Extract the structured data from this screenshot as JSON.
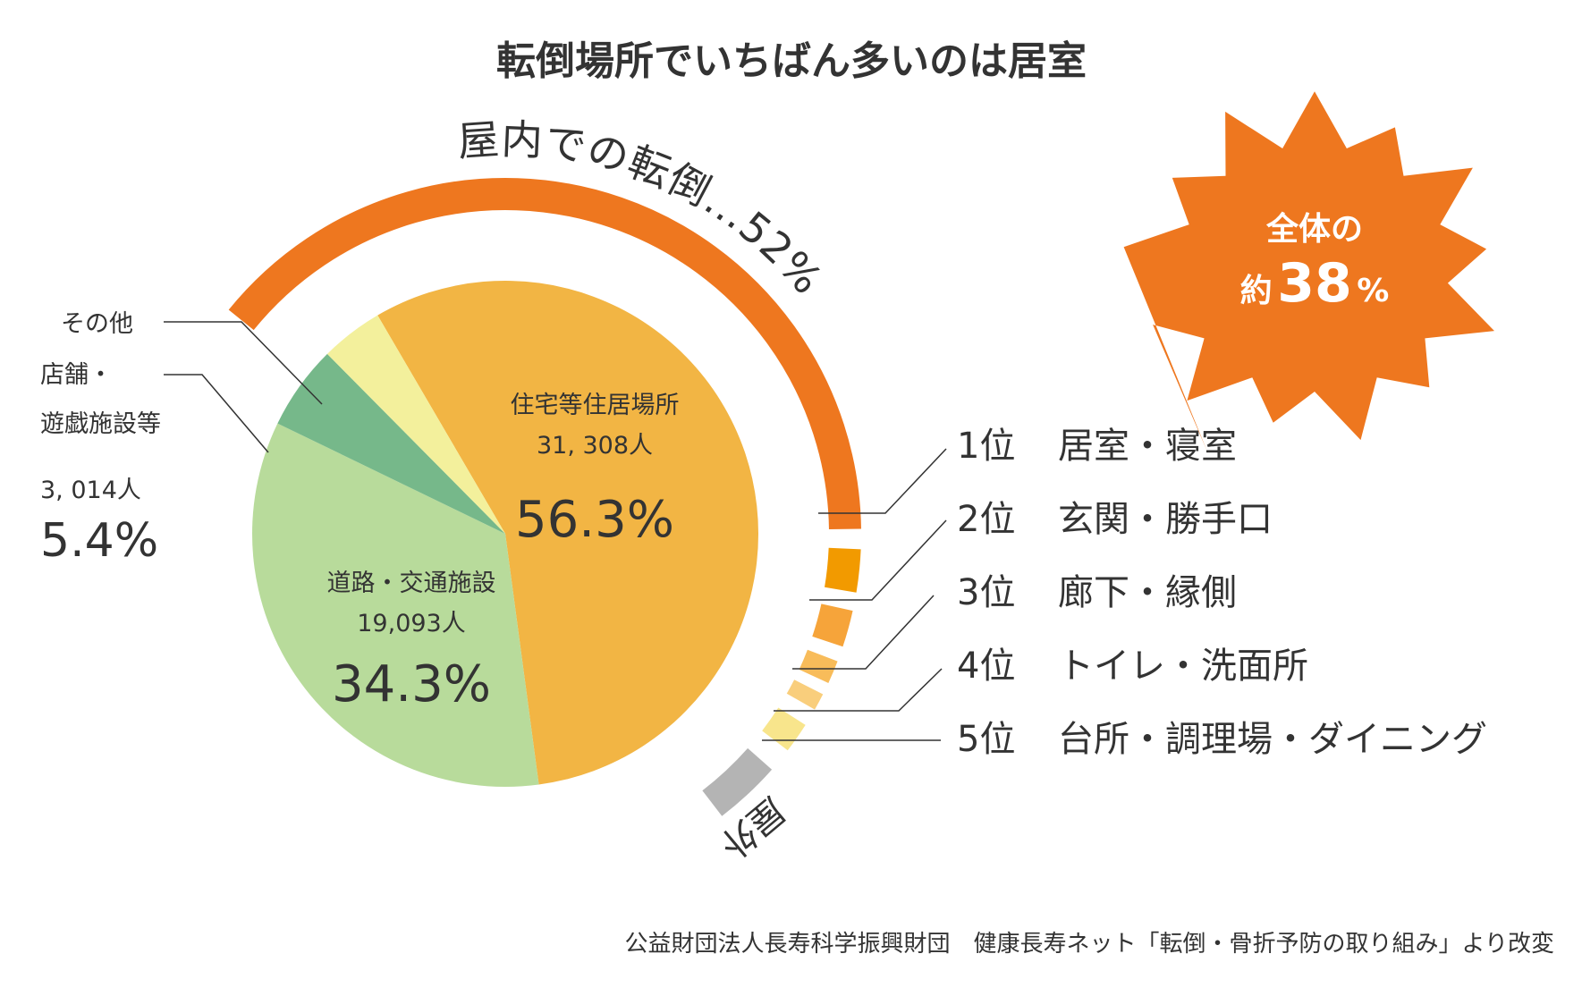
{
  "title": "転倒場所でいちばん多いのは居室",
  "source": "公益財団法人長寿科学振興財団　健康長寿ネット「転倒・骨折予防の取り組み」より改変",
  "chart_data": {
    "type": "pie",
    "slices": [
      {
        "name": "住宅等住居場所",
        "count": "31, 308人",
        "percent": "56.3%",
        "value": 56.3,
        "color": "#F2B544"
      },
      {
        "name": "道路・交通施設",
        "count": "19,093人",
        "percent": "34.3%",
        "value": 34.3,
        "color": "#B8DB9B"
      },
      {
        "name": "店舗・遊戯施設等",
        "count": "",
        "percent": "",
        "value": 5.4,
        "color": "#76B88A"
      },
      {
        "name": "その他",
        "count": "",
        "percent": "",
        "value": 4.0,
        "color": "#F3F09C"
      }
    ],
    "outside_label": {
      "other": "その他",
      "store_line1": "店舗・",
      "store_line2": "遊戯施設等",
      "count": "3, 014人",
      "percent": "5.4%"
    },
    "indoor_arc": {
      "label": "屋内での転倒…52%",
      "percent": 52,
      "color": "#EE771F"
    },
    "outdoor_arc": {
      "label": "屋外",
      "color": "#B4B4B4"
    },
    "ranking": [
      {
        "rank": "1位",
        "place": "居室・寝室",
        "color": "#EE771F"
      },
      {
        "rank": "2位",
        "place": "玄関・勝手口",
        "color": "#F29A00"
      },
      {
        "rank": "3位",
        "place": "廊下・縁側",
        "color": "#F6A43A"
      },
      {
        "rank": "4位",
        "place": "トイレ・洗面所",
        "color": "#F8BC5A"
      },
      {
        "rank": "5位",
        "place": "台所・調理場・ダイニング",
        "color": "#F9CE7C"
      }
    ],
    "extra_arc_color": "#F8E58C",
    "callout": {
      "line1": "全体の",
      "prefix": "約",
      "number": "38",
      "unit": "%",
      "color": "#EE771F"
    }
  }
}
